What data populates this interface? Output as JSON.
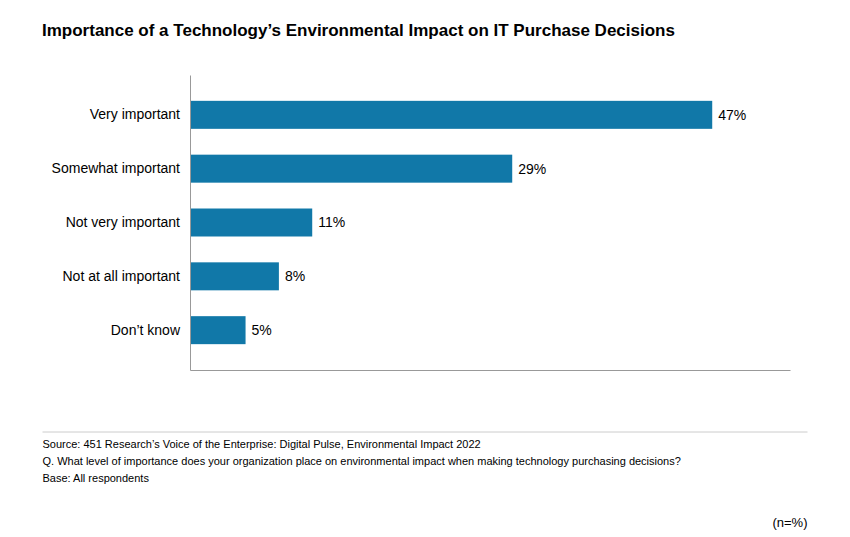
{
  "chart_data": {
    "type": "bar",
    "orientation": "horizontal",
    "title": "Importance of a Technology’s Environmental Impact on IT Purchase Decisions",
    "categories": [
      "Don’t know",
      "Not at all important",
      "Not very important",
      "Somewhat important",
      "Very important"
    ],
    "values": [
      5,
      8,
      11,
      29,
      47
    ],
    "value_labels": [
      "5%",
      "8%",
      "11%",
      "29%",
      "47%"
    ],
    "data_labels": true,
    "color": "#1178a8",
    "xlim": [
      0,
      54
    ],
    "tick_labels": "y",
    "grid": false,
    "annotations": [
      "Source: 451 Research’s Voice of the Enterprise: Digital Pulse, Environmental Impact 2022",
      "Q. What level of importance does your organization place on environmental impact when making technology purchasing decisions?",
      "Base: All respondents",
      "(n=%)"
    ]
  }
}
